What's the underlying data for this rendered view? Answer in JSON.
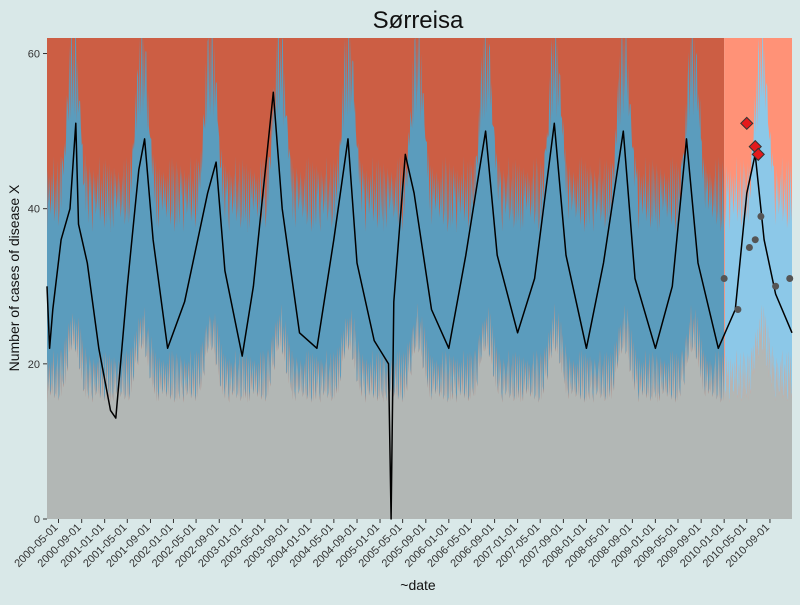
{
  "chart_data": {
    "type": "line",
    "title": "Sørreisa",
    "xlabel": "~date",
    "ylabel": "Number of cases of disease X",
    "ylim": [
      0,
      62
    ],
    "y_ticks": [
      0,
      20,
      40,
      60
    ],
    "x_range": [
      "2000-03-01",
      "2010-12-27"
    ],
    "prediction_start": "2010-01-01",
    "x_tick_labels": [
      "2000-05-01",
      "2000-09-01",
      "2001-01-01",
      "2001-05-01",
      "2001-09-01",
      "2002-01-01",
      "2002-05-01",
      "2002-09-01",
      "2003-01-01",
      "2003-05-01",
      "2003-09-01",
      "2004-01-01",
      "2004-05-01",
      "2004-09-01",
      "2005-01-01",
      "2005-05-01",
      "2005-09-01",
      "2006-01-01",
      "2006-05-01",
      "2006-09-01",
      "2007-01-01",
      "2007-05-01",
      "2007-09-01",
      "2008-01-01",
      "2008-05-01",
      "2008-09-01",
      "2009-01-01",
      "2009-05-01",
      "2009-09-01",
      "2010-01-01",
      "2010-05-01",
      "2010-09-01"
    ],
    "grid": false,
    "legend": "none",
    "colors": {
      "background": "#d9e8e8",
      "high_zone": "#cc5e44",
      "normal_zone": "#5b9cbd",
      "low_zone": "#b2b7b5",
      "high_zone_pred": "#ff9277",
      "normal_zone_pred": "#8cc8e8",
      "line": "#000000",
      "observed_point": "#555555",
      "outbreak_marker": "#e41a1c"
    },
    "series": [
      {
        "type": "threshold_band",
        "values": [
          [
            15,
            37,
            62,
            5
          ],
          [
            20,
            44,
            52,
            3
          ],
          [
            15,
            37,
            62,
            5
          ],
          [
            20,
            44,
            52,
            3
          ],
          [
            15,
            37,
            62,
            5
          ]
        ]
      },
      {
        "type": "line",
        "values": [
          [
            [
              "2000-03-01",
              30
            ],
            [
              "2000-03-15",
              22
            ],
            [
              "2000-04-01",
              27
            ],
            [
              "2000-05-15",
              36
            ],
            [
              "2000-07-01",
              40
            ],
            [
              "2000-08-01",
              51
            ],
            [
              "2000-08-15",
              38
            ],
            [
              "2000-10-01",
              33
            ],
            [
              "2000-12-01",
              22
            ],
            [
              "2001-02-01",
              14
            ],
            [
              "2001-03-01",
              13
            ],
            [
              "2001-05-01",
              30
            ],
            [
              "2001-07-01",
              45
            ],
            [
              "2001-08-01",
              49
            ],
            [
              "2001-09-15",
              36
            ],
            [
              "2001-12-01",
              22
            ],
            [
              "2002-03-01",
              28
            ],
            [
              "2002-07-01",
              42
            ],
            [
              "2002-08-15",
              46
            ],
            [
              "2002-10-01",
              32
            ],
            [
              "2003-01-01",
              21
            ],
            [
              "2003-03-01",
              30
            ],
            [
              "2003-06-15",
              55
            ],
            [
              "2003-08-01",
              40
            ],
            [
              "2003-11-01",
              24
            ],
            [
              "2004-02-01",
              22
            ],
            [
              "2004-05-01",
              36
            ],
            [
              "2004-07-15",
              49
            ],
            [
              "2004-09-01",
              33
            ],
            [
              "2004-12-01",
              23
            ],
            [
              "2005-02-15",
              20
            ],
            [
              "2005-03-01",
              0
            ],
            [
              "2005-03-15",
              28
            ],
            [
              "2005-05-15",
              47
            ],
            [
              "2005-07-01",
              42
            ],
            [
              "2005-10-01",
              27
            ],
            [
              "2006-01-01",
              22
            ],
            [
              "2006-04-01",
              34
            ],
            [
              "2006-07-15",
              50
            ],
            [
              "2006-09-15",
              34
            ],
            [
              "2007-01-01",
              24
            ],
            [
              "2007-04-01",
              31
            ],
            [
              "2007-07-15",
              51
            ],
            [
              "2007-09-15",
              34
            ],
            [
              "2008-01-01",
              22
            ],
            [
              "2008-04-01",
              33
            ],
            [
              "2008-07-15",
              50
            ],
            [
              "2008-09-15",
              31
            ],
            [
              "2009-01-01",
              22
            ],
            [
              "2009-04-01",
              30
            ],
            [
              "2009-06-15",
              49
            ],
            [
              "2009-08-15",
              33
            ],
            [
              "2009-12-01",
              22
            ],
            [
              "2010-03-01",
              27
            ],
            [
              "2010-05-01",
              42
            ],
            [
              "2010-06-15",
              47
            ],
            [
              "2010-08-01",
              36
            ],
            [
              "2010-10-01",
              29
            ],
            [
              "2010-12-27",
              24
            ]
          ]
        ]
      },
      {
        "type": "scatter",
        "values": [
          [
            "2010-01-01",
            31
          ],
          [
            "2010-03-15",
            27
          ],
          [
            "2010-05-15",
            35
          ],
          [
            "2010-06-15",
            36
          ],
          [
            "2010-07-15",
            39
          ],
          [
            "2010-10-01",
            30
          ],
          [
            "2010-12-15",
            31
          ]
        ]
      },
      {
        "type": "markers",
        "values": [
          [
            "2010-05-01",
            51
          ],
          [
            "2010-06-15",
            48
          ],
          [
            "2010-07-01",
            47
          ]
        ]
      }
    ]
  }
}
